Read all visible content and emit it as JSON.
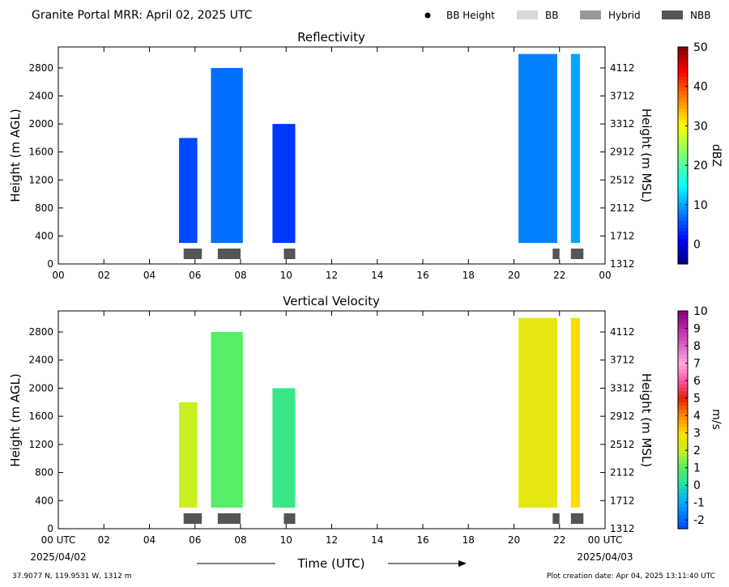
{
  "header": {
    "title": "Granite Portal MRR:  April 02, 2025 UTC",
    "legend": [
      {
        "label": "BB Height",
        "symbol": "dot",
        "color": "#000000"
      },
      {
        "label": "BB",
        "symbol": "rect",
        "color": "#d9d9d9"
      },
      {
        "label": "Hybrid",
        "symbol": "rect",
        "color": "#999999"
      },
      {
        "label": "NBB",
        "symbol": "rect",
        "color": "#555555"
      }
    ]
  },
  "footer": {
    "location": "37.9077 N, 119.9531 W, 1312 m",
    "creation": "Plot creation date: Apr 04, 2025 13:11:40 UTC",
    "start_date": "2025/04/02",
    "end_date": "2025/04/03",
    "xlabel": "Time (UTC)"
  },
  "chart_data": [
    {
      "type": "heatmap",
      "title": "Reflectivity",
      "ylabel": "Height (m AGL)",
      "ylabel_right": "Height (m MSL)",
      "xlim": [
        0,
        24
      ],
      "ylim": [
        0,
        3100
      ],
      "x_ticks": [
        "00",
        "02",
        "04",
        "06",
        "08",
        "10",
        "12",
        "14",
        "16",
        "18",
        "20",
        "22",
        "00"
      ],
      "y_ticks": [
        0,
        400,
        800,
        1200,
        1600,
        2000,
        2400,
        2800
      ],
      "y_ticks_right": [
        "1312",
        "1712",
        "2112",
        "2512",
        "2912",
        "3312",
        "3712",
        "4112"
      ],
      "colorbar": {
        "label": "dBZ",
        "min": -5,
        "max": 50,
        "ticks": [
          "0",
          "10",
          "20",
          "30",
          "40",
          "50"
        ],
        "tick_values": [
          0,
          10,
          20,
          30,
          40,
          50
        ],
        "colormap": "jet"
      },
      "echo_regions": [
        {
          "start": 5.3,
          "end": 6.1,
          "top": 1800,
          "value": 5
        },
        {
          "start": 6.7,
          "end": 8.1,
          "top": 2800,
          "value": 7
        },
        {
          "start": 9.4,
          "end": 10.4,
          "top": 2000,
          "value": 4
        },
        {
          "start": 20.2,
          "end": 21.9,
          "top": 3000,
          "value": 8
        },
        {
          "start": 22.5,
          "end": 22.9,
          "top": 3000,
          "value": 10
        }
      ],
      "bb_classification": [
        {
          "start": 5.5,
          "end": 6.3,
          "class": "NBB"
        },
        {
          "start": 7.0,
          "end": 8.0,
          "class": "NBB"
        },
        {
          "start": 9.9,
          "end": 10.4,
          "class": "NBB"
        },
        {
          "start": 21.7,
          "end": 22.0,
          "class": "NBB"
        },
        {
          "start": 22.5,
          "end": 23.05,
          "class": "NBB"
        }
      ]
    },
    {
      "type": "heatmap",
      "title": "Vertical Velocity",
      "ylabel": "Height (m AGL)",
      "ylabel_right": "Height (m MSL)",
      "xlim": [
        0,
        24
      ],
      "ylim": [
        0,
        3100
      ],
      "x_ticks": [
        "00 UTC",
        "02",
        "04",
        "06",
        "08",
        "10",
        "12",
        "14",
        "16",
        "18",
        "20",
        "22",
        "00 UTC"
      ],
      "y_ticks": [
        0,
        400,
        800,
        1200,
        1600,
        2000,
        2400,
        2800
      ],
      "y_ticks_right": [
        "1312",
        "1712",
        "2112",
        "2512",
        "2912",
        "3312",
        "3712",
        "4112"
      ],
      "colorbar": {
        "label": "m/s",
        "min": -2.5,
        "max": 10,
        "ticks": [
          "-2",
          "-1",
          "0",
          "1",
          "2",
          "3",
          "4",
          "5",
          "6",
          "7",
          "8",
          "9",
          "10"
        ],
        "tick_values": [
          -2,
          -1,
          0,
          1,
          2,
          3,
          4,
          5,
          6,
          7,
          8,
          9,
          10
        ],
        "colormap": "velocity"
      },
      "echo_regions": [
        {
          "start": 5.3,
          "end": 6.1,
          "top": 1800,
          "value": 2
        },
        {
          "start": 6.7,
          "end": 8.1,
          "top": 2800,
          "value": 1
        },
        {
          "start": 9.4,
          "end": 10.4,
          "top": 2000,
          "value": 0.5
        },
        {
          "start": 20.2,
          "end": 21.9,
          "top": 3000,
          "value": 2.5
        },
        {
          "start": 22.5,
          "end": 22.9,
          "top": 3000,
          "value": 3
        }
      ],
      "bb_classification": [
        {
          "start": 5.5,
          "end": 6.3,
          "class": "NBB"
        },
        {
          "start": 7.0,
          "end": 8.0,
          "class": "NBB"
        },
        {
          "start": 9.9,
          "end": 10.4,
          "class": "NBB"
        },
        {
          "start": 21.7,
          "end": 22.0,
          "class": "NBB"
        },
        {
          "start": 22.5,
          "end": 23.05,
          "class": "NBB"
        }
      ]
    }
  ]
}
